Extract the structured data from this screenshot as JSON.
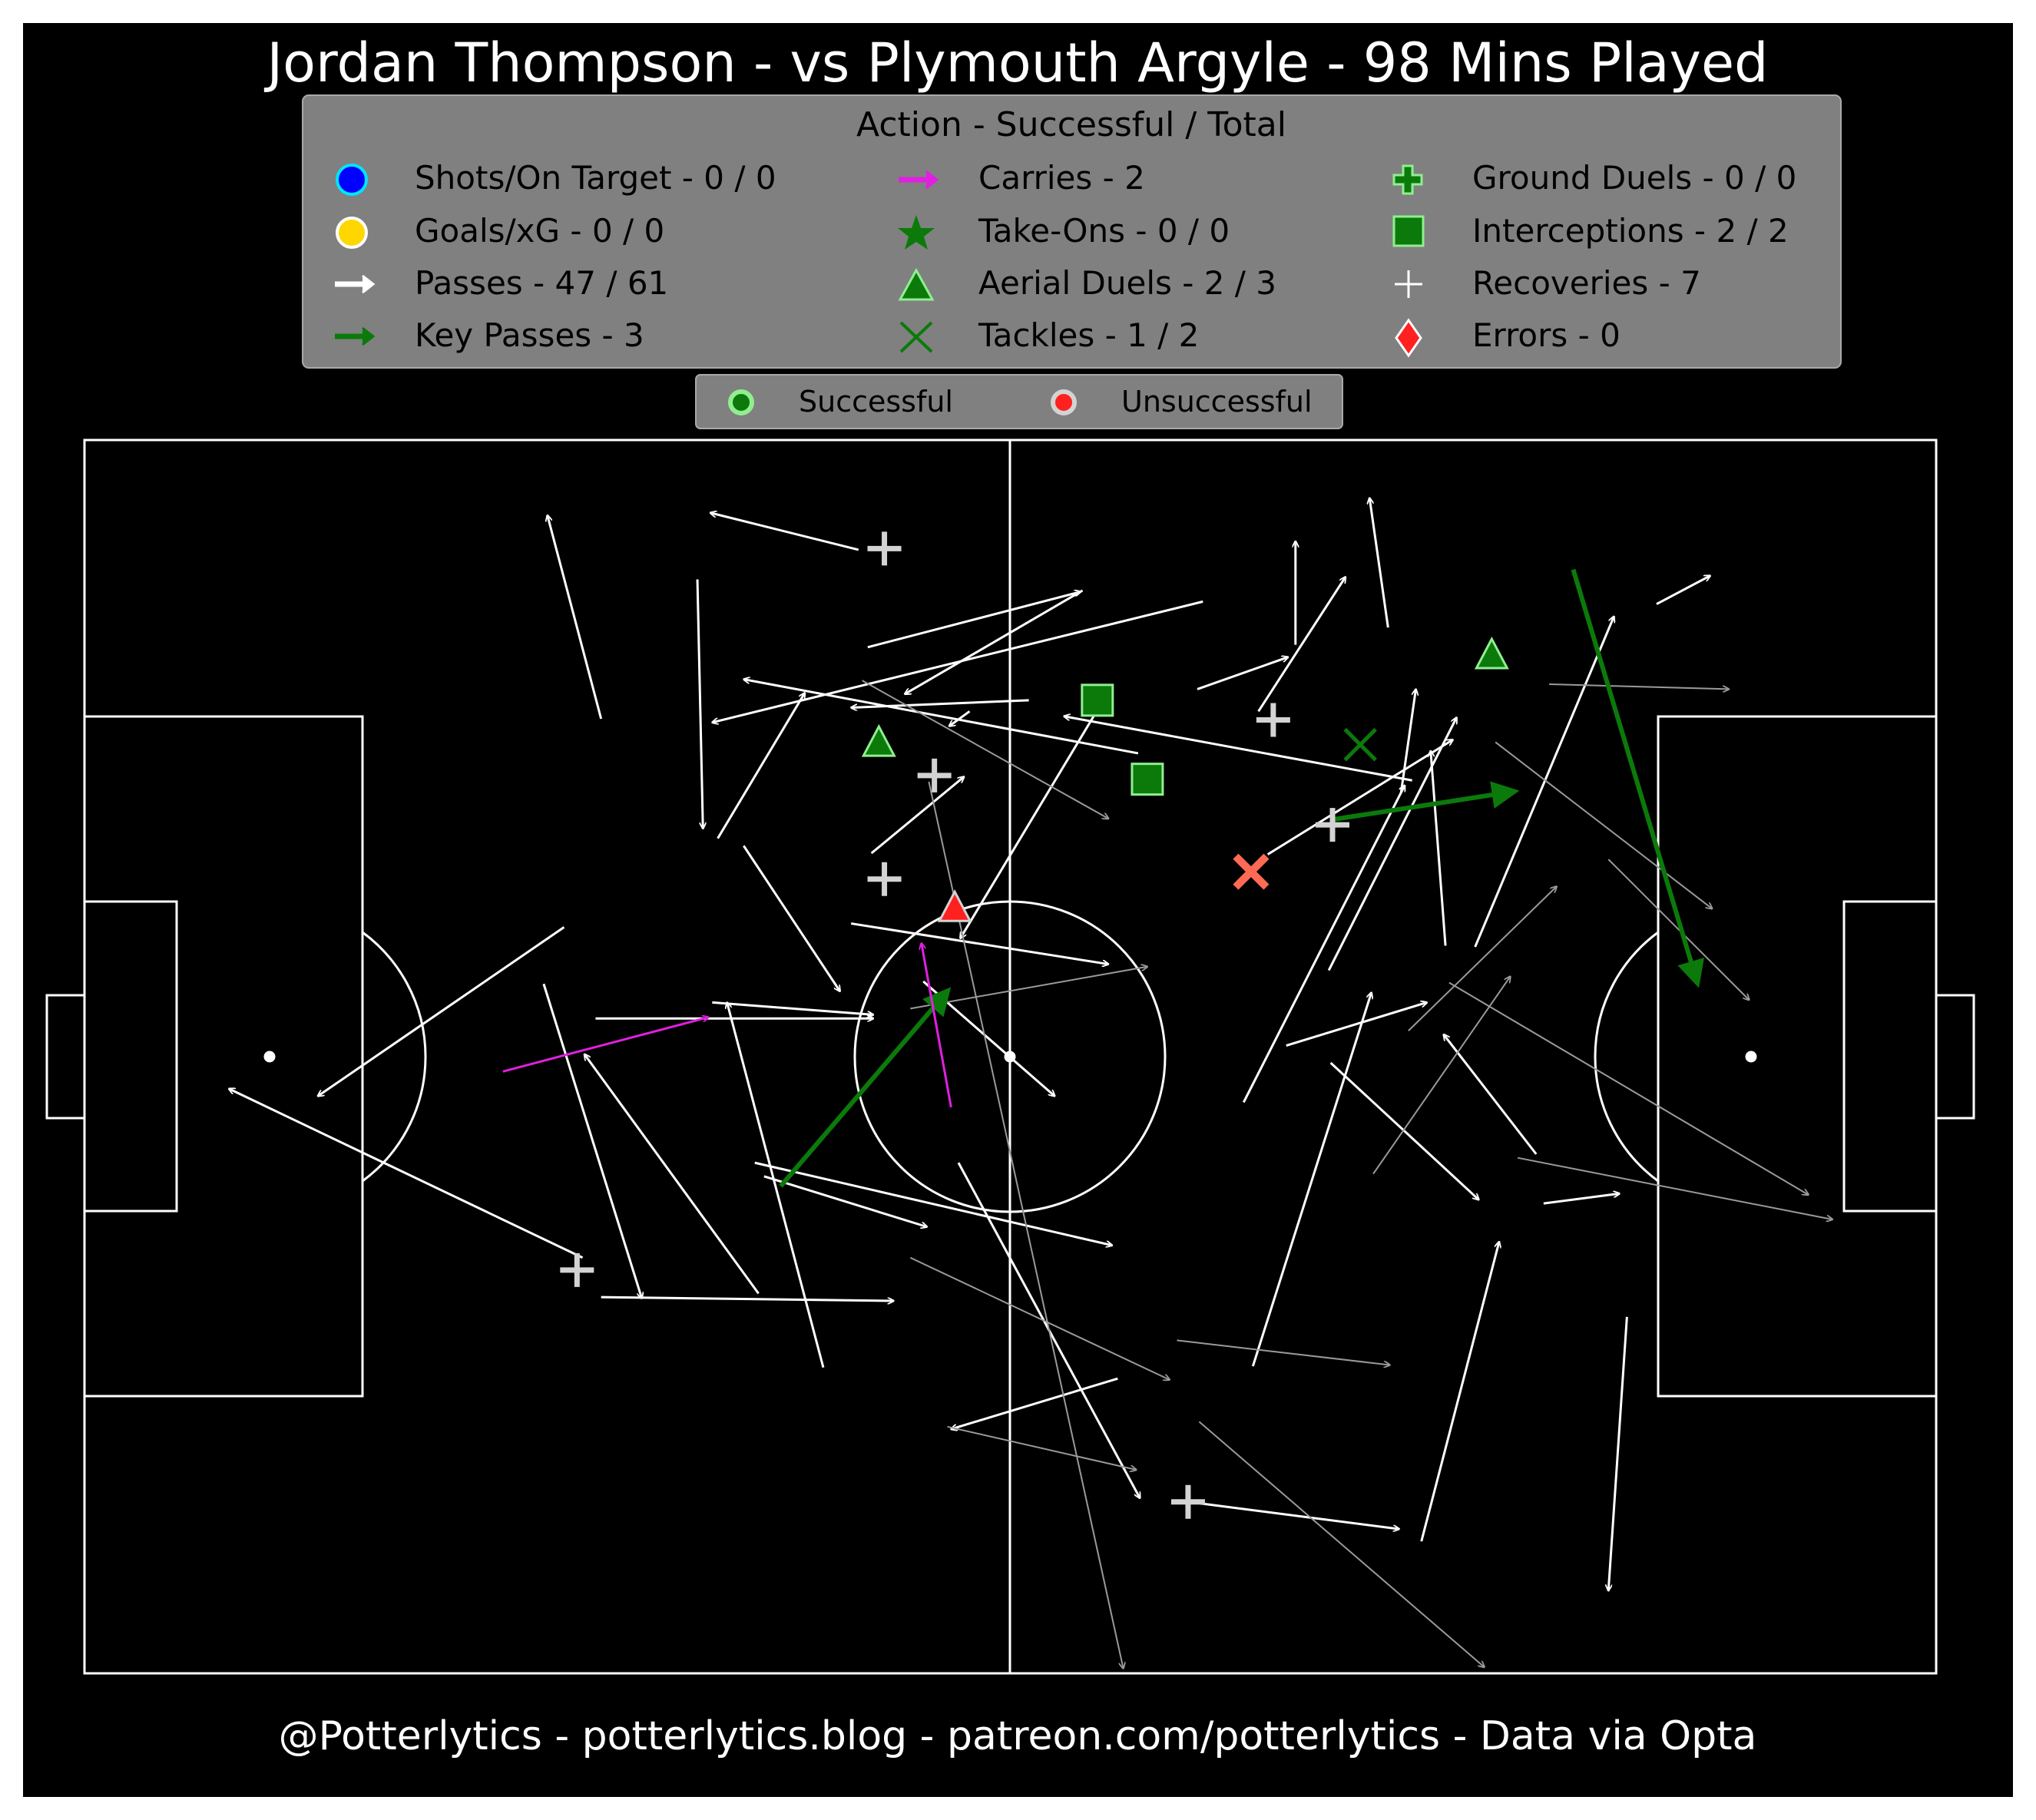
{
  "title": "Jordan Thompson - vs Plymouth Argyle - 98 Mins Played",
  "footer": "@Potterlytics - potterlytics.blog - patreon.com/potterlytics - Data via Opta",
  "colors": {
    "background": "#000000",
    "legend_box": "#808080",
    "pass": "#ffffff",
    "pass_unsuccessful": "#9a9a9a",
    "key_pass": "#0b7a0b",
    "carry": "#e020e0",
    "success_green": "#0b7a0b",
    "success_edge": "#90ee90",
    "fail_red": "#ff2020",
    "recovery": "#d3d3d3",
    "shot": "#0000ff",
    "goal": "#ffd700"
  },
  "legend": {
    "title": "Action - Successful / Total",
    "items": [
      {
        "icon": "shot-circle-icon",
        "label": "Shots/On Target - 0 / 0"
      },
      {
        "icon": "goal-circle-icon",
        "label": "Goals/xG - 0 / 0"
      },
      {
        "icon": "pass-arrow-icon",
        "label": "Passes - 47 / 61"
      },
      {
        "icon": "key-pass-arrow-icon",
        "label": "Key Passes - 3"
      },
      {
        "icon": "carry-arrow-icon",
        "label": "Carries - 2"
      },
      {
        "icon": "take-on-star-icon",
        "label": "Take-Ons - 0 / 0"
      },
      {
        "icon": "aerial-triangle-icon",
        "label": "Aerial Duels - 2 / 3"
      },
      {
        "icon": "tackle-x-icon",
        "label": "Tackles - 1 / 2"
      },
      {
        "icon": "ground-duel-plus-icon",
        "label": "Ground Duels - 0 / 0"
      },
      {
        "icon": "interception-square-icon",
        "label": "Interceptions - 2 / 2"
      },
      {
        "icon": "recovery-plus-icon",
        "label": "Recoveries - 7"
      },
      {
        "icon": "error-diamond-icon",
        "label": "Errors - 0"
      }
    ]
  },
  "status_legend": {
    "successful": "Successful",
    "unsuccessful": "Unsuccessful"
  },
  "chart_data": {
    "type": "scatter",
    "pitch": {
      "x_range": [
        0,
        100
      ],
      "y_range": [
        0,
        100
      ],
      "orientation": "left-to-right"
    },
    "passes": [
      {
        "x1": 41.8,
        "y1": 8.9,
        "x2": 33.8,
        "y2": 5.9,
        "success": true
      },
      {
        "x1": 27.9,
        "y1": 22.6,
        "x2": 25.0,
        "y2": 6.1,
        "success": true
      },
      {
        "x1": 60.4,
        "y1": 13.1,
        "x2": 33.9,
        "y2": 22.9,
        "success": true
      },
      {
        "x1": 53.9,
        "y1": 12.2,
        "x2": 44.3,
        "y2": 20.6,
        "success": true
      },
      {
        "x1": 51.0,
        "y1": 21.1,
        "x2": 41.4,
        "y2": 21.7,
        "success": true
      },
      {
        "x1": 42.3,
        "y1": 16.8,
        "x2": 53.8,
        "y2": 12.3,
        "success": true
      },
      {
        "x1": 56.9,
        "y1": 25.4,
        "x2": 35.6,
        "y2": 19.4,
        "success": true
      },
      {
        "x1": 71.7,
        "y1": 27.6,
        "x2": 52.9,
        "y2": 22.4,
        "success": true
      },
      {
        "x1": 60.1,
        "y1": 20.2,
        "x2": 65.0,
        "y2": 17.6,
        "success": true
      },
      {
        "x1": 65.4,
        "y1": 16.6,
        "x2": 65.4,
        "y2": 8.2,
        "success": true
      },
      {
        "x1": 63.4,
        "y1": 22.0,
        "x2": 68.1,
        "y2": 11.1,
        "success": true
      },
      {
        "x1": 70.4,
        "y1": 15.2,
        "x2": 69.4,
        "y2": 4.7,
        "success": true
      },
      {
        "x1": 84.9,
        "y1": 13.3,
        "x2": 87.8,
        "y2": 11.0,
        "success": true
      },
      {
        "x1": 33.1,
        "y1": 11.3,
        "x2": 33.4,
        "y2": 31.5,
        "success": true
      },
      {
        "x1": 47.8,
        "y1": 22.0,
        "x2": 46.7,
        "y2": 23.2,
        "success": true
      },
      {
        "x1": 42.5,
        "y1": 33.5,
        "x2": 47.5,
        "y2": 27.3,
        "success": true
      },
      {
        "x1": 54.5,
        "y1": 22.4,
        "x2": 47.3,
        "y2": 40.4,
        "success": true
      },
      {
        "x1": 34.2,
        "y1": 32.3,
        "x2": 38.9,
        "y2": 20.5,
        "success": true
      },
      {
        "x1": 25.9,
        "y1": 39.5,
        "x2": 12.6,
        "y2": 53.2,
        "success": true
      },
      {
        "x1": 24.8,
        "y1": 44.1,
        "x2": 30.1,
        "y2": 69.6,
        "success": true
      },
      {
        "x1": 27.6,
        "y1": 46.9,
        "x2": 42.6,
        "y2": 46.9,
        "success": true
      },
      {
        "x1": 33.9,
        "y1": 45.6,
        "x2": 42.6,
        "y2": 46.6,
        "success": true
      },
      {
        "x1": 41.4,
        "y1": 39.2,
        "x2": 55.3,
        "y2": 42.5,
        "success": true
      },
      {
        "x1": 35.6,
        "y1": 32.9,
        "x2": 40.8,
        "y2": 44.7,
        "success": true
      },
      {
        "x1": 36.4,
        "y1": 69.2,
        "x2": 27.0,
        "y2": 49.8,
        "success": true
      },
      {
        "x1": 36.7,
        "y1": 59.7,
        "x2": 45.5,
        "y2": 63.8,
        "success": true
      },
      {
        "x1": 36.2,
        "y1": 58.6,
        "x2": 55.5,
        "y2": 65.3,
        "success": true
      },
      {
        "x1": 39.9,
        "y1": 75.2,
        "x2": 34.7,
        "y2": 45.6,
        "success": true
      },
      {
        "x1": 27.9,
        "y1": 69.5,
        "x2": 43.7,
        "y2": 69.8,
        "success": true
      },
      {
        "x1": 26.9,
        "y1": 66.3,
        "x2": 7.8,
        "y2": 52.6,
        "success": true
      },
      {
        "x1": 45.3,
        "y1": 43.9,
        "x2": 52.4,
        "y2": 53.2,
        "success": true
      },
      {
        "x1": 47.2,
        "y1": 58.6,
        "x2": 57.0,
        "y2": 85.8,
        "success": true
      },
      {
        "x1": 55.8,
        "y1": 76.1,
        "x2": 46.8,
        "y2": 80.2,
        "success": true
      },
      {
        "x1": 59.1,
        "y1": 86.0,
        "x2": 71.0,
        "y2": 88.3,
        "success": true
      },
      {
        "x1": 63.1,
        "y1": 75.1,
        "x2": 69.5,
        "y2": 44.8,
        "success": true
      },
      {
        "x1": 64.9,
        "y1": 49.1,
        "x2": 72.5,
        "y2": 45.6,
        "success": true
      },
      {
        "x1": 62.6,
        "y1": 53.7,
        "x2": 71.3,
        "y2": 28.0,
        "success": true
      },
      {
        "x1": 67.2,
        "y1": 43.0,
        "x2": 74.1,
        "y2": 22.5,
        "success": true
      },
      {
        "x1": 71.1,
        "y1": 28.6,
        "x2": 71.9,
        "y2": 20.2,
        "success": true
      },
      {
        "x1": 73.5,
        "y1": 41.0,
        "x2": 72.7,
        "y2": 25.2,
        "success": true
      },
      {
        "x1": 67.3,
        "y1": 50.5,
        "x2": 75.3,
        "y2": 61.6,
        "success": true
      },
      {
        "x1": 78.8,
        "y1": 61.9,
        "x2": 82.9,
        "y2": 61.1,
        "success": true
      },
      {
        "x1": 72.2,
        "y1": 89.3,
        "x2": 76.4,
        "y2": 65.0,
        "success": true
      },
      {
        "x1": 75.1,
        "y1": 41.1,
        "x2": 82.6,
        "y2": 14.3,
        "success": true
      },
      {
        "x1": 83.3,
        "y1": 71.1,
        "x2": 82.3,
        "y2": 93.3,
        "success": true
      },
      {
        "x1": 78.4,
        "y1": 57.9,
        "x2": 73.4,
        "y2": 48.2,
        "success": true
      },
      {
        "x1": 63.9,
        "y1": 33.6,
        "x2": 73.9,
        "y2": 24.3,
        "success": true
      },
      {
        "x1": 42.0,
        "y1": 19.5,
        "x2": 55.3,
        "y2": 30.7,
        "success": false
      },
      {
        "x1": 45.6,
        "y1": 27.7,
        "x2": 56.1,
        "y2": 99.6,
        "success": false
      },
      {
        "x1": 44.6,
        "y1": 46.1,
        "x2": 57.4,
        "y2": 42.7,
        "success": false
      },
      {
        "x1": 44.6,
        "y1": 66.3,
        "x2": 58.6,
        "y2": 76.2,
        "success": false
      },
      {
        "x1": 46.6,
        "y1": 80.0,
        "x2": 56.8,
        "y2": 83.5,
        "success": false
      },
      {
        "x1": 59.0,
        "y1": 73.0,
        "x2": 70.5,
        "y2": 75.0,
        "success": false
      },
      {
        "x1": 60.2,
        "y1": 79.6,
        "x2": 75.6,
        "y2": 99.5,
        "success": false
      },
      {
        "x1": 69.6,
        "y1": 59.5,
        "x2": 77.0,
        "y2": 43.5,
        "success": false
      },
      {
        "x1": 71.5,
        "y1": 47.9,
        "x2": 79.5,
        "y2": 36.2,
        "success": false
      },
      {
        "x1": 79.1,
        "y1": 19.8,
        "x2": 88.8,
        "y2": 20.2,
        "success": false
      },
      {
        "x1": 76.2,
        "y1": 24.5,
        "x2": 87.9,
        "y2": 38.0,
        "success": false
      },
      {
        "x1": 82.3,
        "y1": 34.0,
        "x2": 89.9,
        "y2": 45.4,
        "success": false
      },
      {
        "x1": 73.7,
        "y1": 44.0,
        "x2": 93.1,
        "y2": 61.2,
        "success": false
      },
      {
        "x1": 77.4,
        "y1": 58.2,
        "x2": 94.4,
        "y2": 63.2,
        "success": false
      }
    ],
    "key_passes": [
      {
        "x1": 37.6,
        "y1": 60.5,
        "x2": 46.6,
        "y2": 44.7
      },
      {
        "x1": 67.3,
        "y1": 30.8,
        "x2": 77.2,
        "y2": 28.5
      },
      {
        "x1": 80.4,
        "y1": 10.5,
        "x2": 87.1,
        "y2": 44.0
      }
    ],
    "carries": [
      {
        "x1": 22.6,
        "y1": 51.2,
        "x2": 33.7,
        "y2": 46.8
      },
      {
        "x1": 46.8,
        "y1": 54.1,
        "x2": 45.2,
        "y2": 40.8
      }
    ],
    "aerial_duels": [
      {
        "x": 42.9,
        "y": 24.6,
        "success": true
      },
      {
        "x": 76.0,
        "y": 17.5,
        "success": true
      },
      {
        "x": 47.0,
        "y": 38.0,
        "success": false
      }
    ],
    "tackles": [
      {
        "x": 68.9,
        "y": 24.7,
        "success": true
      },
      {
        "x": 63.0,
        "y": 35.0,
        "success": false
      }
    ],
    "interceptions": [
      {
        "x": 54.7,
        "y": 21.1,
        "success": true
      },
      {
        "x": 57.4,
        "y": 27.5,
        "success": true
      }
    ],
    "recoveries": [
      {
        "x": 43.2,
        "y": 8.8
      },
      {
        "x": 45.9,
        "y": 27.2
      },
      {
        "x": 43.2,
        "y": 35.6
      },
      {
        "x": 64.2,
        "y": 22.7
      },
      {
        "x": 67.4,
        "y": 31.2
      },
      {
        "x": 26.6,
        "y": 67.3
      },
      {
        "x": 59.6,
        "y": 86.1
      }
    ]
  }
}
